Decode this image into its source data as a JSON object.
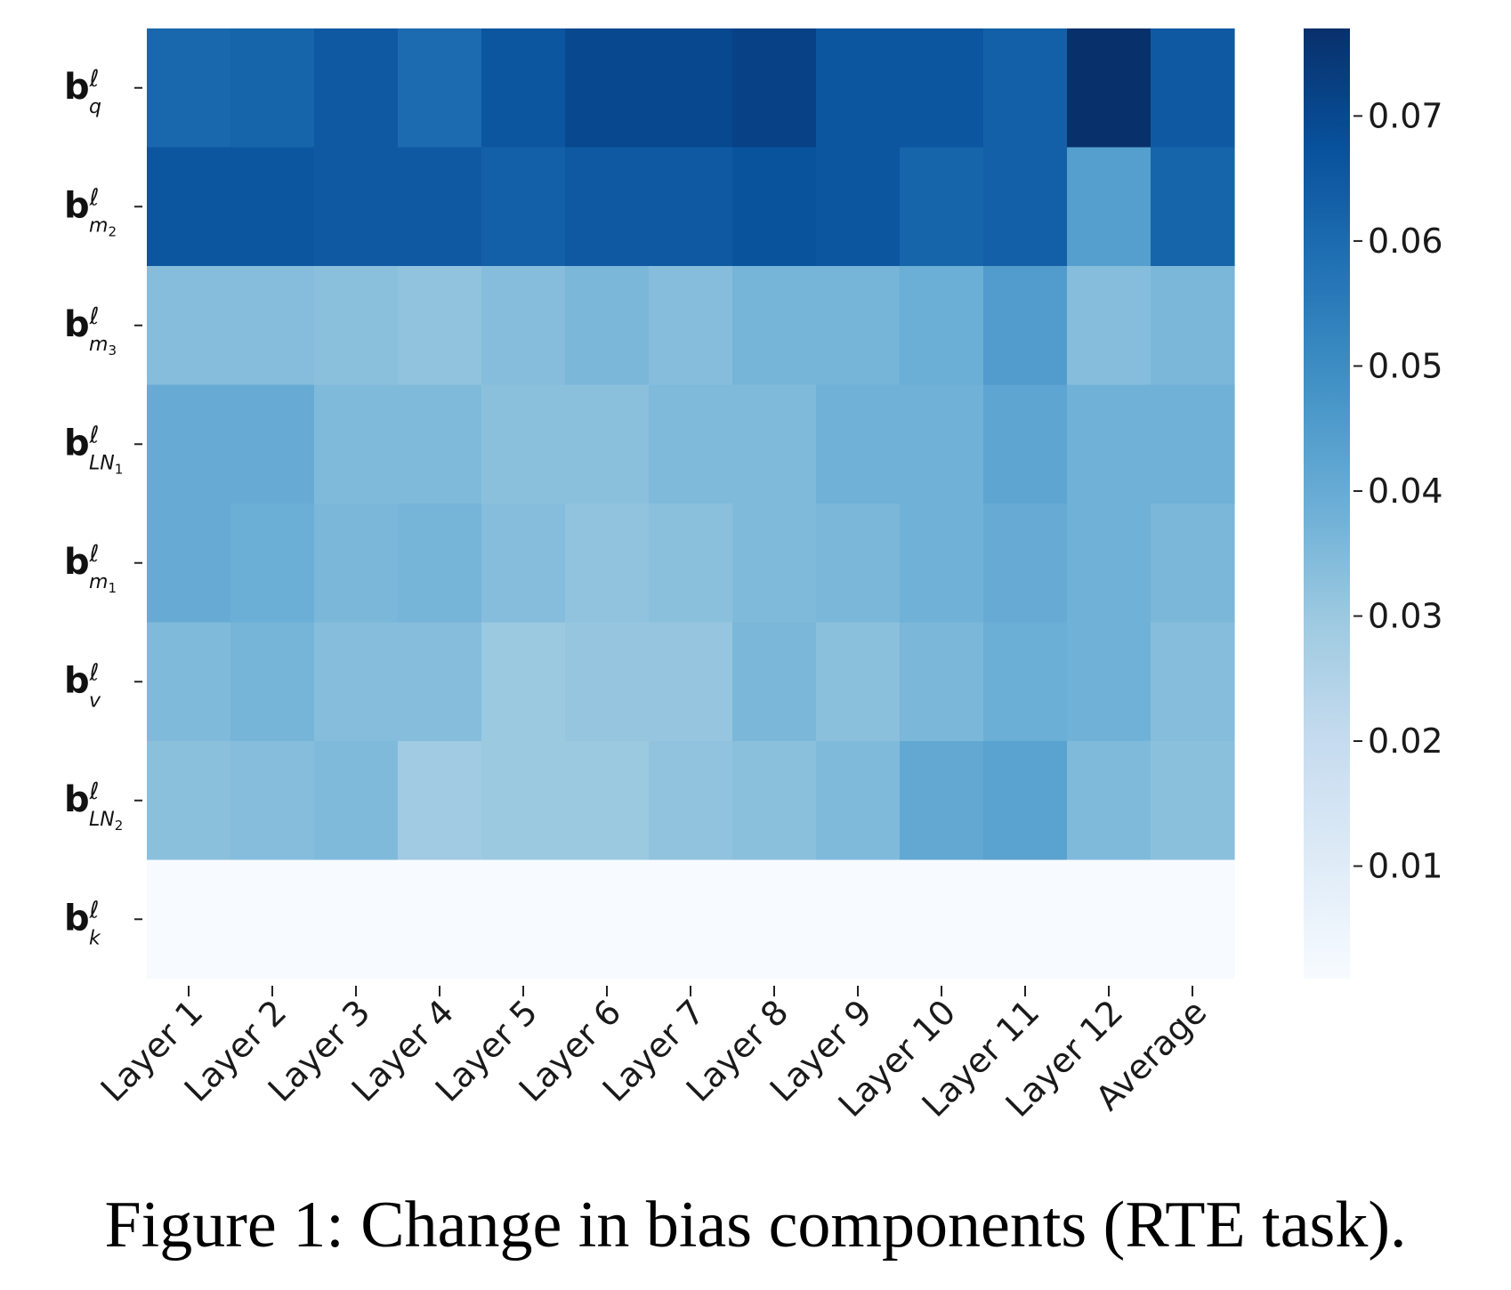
{
  "chart_data": {
    "type": "heatmap",
    "title": "",
    "x_labels": [
      "Layer 1",
      "Layer 2",
      "Layer 3",
      "Layer 4",
      "Layer 5",
      "Layer 6",
      "Layer 7",
      "Layer 8",
      "Layer 9",
      "Layer 10",
      "Layer 11",
      "Layer 12",
      "Average"
    ],
    "y_labels": [
      {
        "main": "b",
        "sup": "ℓ",
        "sub": "q",
        "subsub": ""
      },
      {
        "main": "b",
        "sup": "ℓ",
        "sub": "m",
        "subsub": "2"
      },
      {
        "main": "b",
        "sup": "ℓ",
        "sub": "m",
        "subsub": "3"
      },
      {
        "main": "b",
        "sup": "ℓ",
        "sub": "LN",
        "subsub": "1"
      },
      {
        "main": "b",
        "sup": "ℓ",
        "sub": "m",
        "subsub": "1"
      },
      {
        "main": "b",
        "sup": "ℓ",
        "sub": "v",
        "subsub": ""
      },
      {
        "main": "b",
        "sup": "ℓ",
        "sub": "LN",
        "subsub": "2"
      },
      {
        "main": "b",
        "sup": "ℓ",
        "sub": "k",
        "subsub": ""
      }
    ],
    "values": [
      [
        0.061,
        0.062,
        0.065,
        0.06,
        0.066,
        0.07,
        0.07,
        0.072,
        0.066,
        0.066,
        0.063,
        0.077,
        0.065
      ],
      [
        0.066,
        0.066,
        0.065,
        0.065,
        0.063,
        0.065,
        0.065,
        0.067,
        0.066,
        0.062,
        0.063,
        0.044,
        0.062
      ],
      [
        0.034,
        0.034,
        0.033,
        0.032,
        0.034,
        0.036,
        0.034,
        0.037,
        0.037,
        0.039,
        0.045,
        0.034,
        0.036
      ],
      [
        0.04,
        0.04,
        0.035,
        0.035,
        0.033,
        0.033,
        0.035,
        0.035,
        0.038,
        0.038,
        0.042,
        0.038,
        0.038
      ],
      [
        0.04,
        0.039,
        0.036,
        0.037,
        0.034,
        0.032,
        0.033,
        0.035,
        0.036,
        0.038,
        0.04,
        0.038,
        0.036
      ],
      [
        0.035,
        0.037,
        0.034,
        0.034,
        0.03,
        0.031,
        0.031,
        0.036,
        0.033,
        0.036,
        0.039,
        0.038,
        0.034
      ],
      [
        0.033,
        0.034,
        0.035,
        0.029,
        0.03,
        0.03,
        0.032,
        0.033,
        0.035,
        0.041,
        0.043,
        0.035,
        0.033
      ],
      [
        0.001,
        0.001,
        0.001,
        0.001,
        0.001,
        0.001,
        0.001,
        0.001,
        0.001,
        0.001,
        0.001,
        0.001,
        0.001
      ]
    ],
    "colorbar": {
      "min": 0.001,
      "max": 0.077,
      "ticks": [
        "0.01",
        "0.02",
        "0.03",
        "0.04",
        "0.05",
        "0.06",
        "0.07"
      ],
      "colormap": "Blues"
    }
  },
  "caption": "Figure 1: Change in bias components (RTE task)."
}
